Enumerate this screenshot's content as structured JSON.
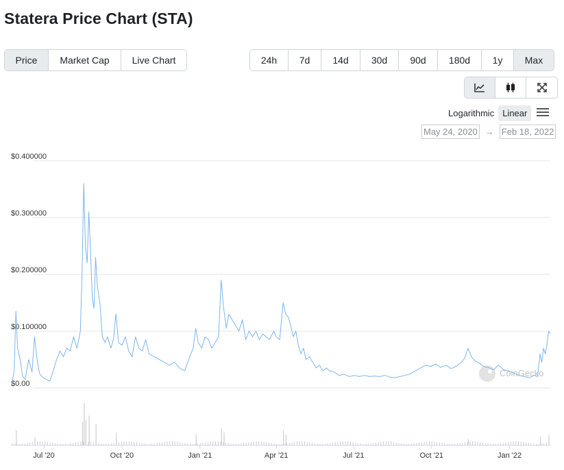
{
  "page": {
    "title": "Statera Price Chart (STA)"
  },
  "metric_tabs": [
    {
      "label": "Price",
      "active": true
    },
    {
      "label": "Market Cap",
      "active": false
    },
    {
      "label": "Live Chart",
      "active": false
    }
  ],
  "range_tabs": [
    {
      "label": "24h",
      "active": false
    },
    {
      "label": "7d",
      "active": false
    },
    {
      "label": "14d",
      "active": false
    },
    {
      "label": "30d",
      "active": false
    },
    {
      "label": "90d",
      "active": false
    },
    {
      "label": "180d",
      "active": false
    },
    {
      "label": "1y",
      "active": false
    },
    {
      "label": "Max",
      "active": true
    }
  ],
  "view_buttons": [
    {
      "icon": "line-chart-icon",
      "active": true
    },
    {
      "icon": "candlestick-icon",
      "active": false
    },
    {
      "icon": "fullscreen-icon",
      "active": false
    }
  ],
  "scale": {
    "log_label": "Logarithmic",
    "linear_label": "Linear",
    "active": "linear"
  },
  "date_range": {
    "from": "May 24, 2020",
    "arrow": "→",
    "to": "Feb 18, 2022"
  },
  "watermark": "CoinGecko",
  "colors": {
    "line": "#7cb5ec",
    "volume": "#cccccc",
    "grid": "#e6e6e6",
    "active_tab": "#e9ecef"
  },
  "chart_data": {
    "type": "line",
    "x_range": [
      "2020-05-24",
      "2022-02-18"
    ],
    "y_ticks": [
      "$0.00",
      "$0.100000",
      "$0.200000",
      "$0.300000",
      "$0.400000"
    ],
    "ylim": [
      0,
      0.4
    ],
    "x_ticks": [
      {
        "date": "2020-07-01",
        "label": "Jul '20"
      },
      {
        "date": "2020-10-01",
        "label": "Oct '20"
      },
      {
        "date": "2021-01-01",
        "label": "Jan '21"
      },
      {
        "date": "2021-04-01",
        "label": "Apr '21"
      },
      {
        "date": "2021-07-01",
        "label": "Jul '21"
      },
      {
        "date": "2021-10-01",
        "label": "Oct '21"
      },
      {
        "date": "2022-01-01",
        "label": "Jan '22"
      }
    ],
    "grid": true,
    "series": [
      {
        "values": [
          [
            "2020-05-24",
            0.005
          ],
          [
            "2020-05-27",
            0.03
          ],
          [
            "2020-05-29",
            0.135
          ],
          [
            "2020-05-31",
            0.07
          ],
          [
            "2020-06-03",
            0.05
          ],
          [
            "2020-06-06",
            0.02
          ],
          [
            "2020-06-09",
            0.015
          ],
          [
            "2020-06-13",
            0.05
          ],
          [
            "2020-06-17",
            0.028
          ],
          [
            "2020-06-20",
            0.09
          ],
          [
            "2020-06-23",
            0.05
          ],
          [
            "2020-06-26",
            0.025
          ],
          [
            "2020-06-30",
            0.018
          ],
          [
            "2020-07-04",
            0.015
          ],
          [
            "2020-07-08",
            0.012
          ],
          [
            "2020-07-12",
            0.03
          ],
          [
            "2020-07-16",
            0.05
          ],
          [
            "2020-07-20",
            0.065
          ],
          [
            "2020-07-24",
            0.055
          ],
          [
            "2020-07-28",
            0.07
          ],
          [
            "2020-08-01",
            0.065
          ],
          [
            "2020-08-05",
            0.09
          ],
          [
            "2020-08-09",
            0.07
          ],
          [
            "2020-08-13",
            0.1
          ],
          [
            "2020-08-15",
            0.2
          ],
          [
            "2020-08-17",
            0.36
          ],
          [
            "2020-08-19",
            0.25
          ],
          [
            "2020-08-21",
            0.22
          ],
          [
            "2020-08-23",
            0.31
          ],
          [
            "2020-08-25",
            0.24
          ],
          [
            "2020-08-27",
            0.16
          ],
          [
            "2020-08-29",
            0.14
          ],
          [
            "2020-08-31",
            0.23
          ],
          [
            "2020-09-02",
            0.18
          ],
          [
            "2020-09-05",
            0.15
          ],
          [
            "2020-09-08",
            0.09
          ],
          [
            "2020-09-11",
            0.08
          ],
          [
            "2020-09-14",
            0.09
          ],
          [
            "2020-09-18",
            0.07
          ],
          [
            "2020-09-21",
            0.085
          ],
          [
            "2020-09-24",
            0.13
          ],
          [
            "2020-09-27",
            0.08
          ],
          [
            "2020-10-01",
            0.075
          ],
          [
            "2020-10-05",
            0.09
          ],
          [
            "2020-10-09",
            0.065
          ],
          [
            "2020-10-13",
            0.055
          ],
          [
            "2020-10-17",
            0.09
          ],
          [
            "2020-10-21",
            0.07
          ],
          [
            "2020-10-25",
            0.065
          ],
          [
            "2020-10-29",
            0.085
          ],
          [
            "2020-11-02",
            0.06
          ],
          [
            "2020-11-08",
            0.055
          ],
          [
            "2020-11-14",
            0.05
          ],
          [
            "2020-11-20",
            0.045
          ],
          [
            "2020-11-26",
            0.04
          ],
          [
            "2020-12-02",
            0.045
          ],
          [
            "2020-12-08",
            0.035
          ],
          [
            "2020-12-14",
            0.03
          ],
          [
            "2020-12-20",
            0.055
          ],
          [
            "2020-12-24",
            0.07
          ],
          [
            "2020-12-27",
            0.105
          ],
          [
            "2020-12-30",
            0.08
          ],
          [
            "2021-01-03",
            0.07
          ],
          [
            "2021-01-07",
            0.09
          ],
          [
            "2021-01-11",
            0.085
          ],
          [
            "2021-01-15",
            0.07
          ],
          [
            "2021-01-19",
            0.08
          ],
          [
            "2021-01-23",
            0.09
          ],
          [
            "2021-01-26",
            0.19
          ],
          [
            "2021-01-29",
            0.14
          ],
          [
            "2021-02-01",
            0.105
          ],
          [
            "2021-02-04",
            0.13
          ],
          [
            "2021-02-08",
            0.12
          ],
          [
            "2021-02-12",
            0.11
          ],
          [
            "2021-02-16",
            0.1
          ],
          [
            "2021-02-20",
            0.12
          ],
          [
            "2021-02-24",
            0.085
          ],
          [
            "2021-02-28",
            0.1
          ],
          [
            "2021-03-04",
            0.09
          ],
          [
            "2021-03-08",
            0.1
          ],
          [
            "2021-03-12",
            0.085
          ],
          [
            "2021-03-16",
            0.095
          ],
          [
            "2021-03-20",
            0.09
          ],
          [
            "2021-03-24",
            0.085
          ],
          [
            "2021-03-29",
            0.1
          ],
          [
            "2021-04-01",
            0.09
          ],
          [
            "2021-04-05",
            0.085
          ],
          [
            "2021-04-09",
            0.15
          ],
          [
            "2021-04-12",
            0.13
          ],
          [
            "2021-04-15",
            0.125
          ],
          [
            "2021-04-18",
            0.11
          ],
          [
            "2021-04-21",
            0.09
          ],
          [
            "2021-04-24",
            0.1
          ],
          [
            "2021-04-27",
            0.075
          ],
          [
            "2021-04-30",
            0.06
          ],
          [
            "2021-05-03",
            0.07
          ],
          [
            "2021-05-06",
            0.05
          ],
          [
            "2021-05-10",
            0.055
          ],
          [
            "2021-05-14",
            0.045
          ],
          [
            "2021-05-18",
            0.035
          ],
          [
            "2021-05-22",
            0.04
          ],
          [
            "2021-05-26",
            0.03
          ],
          [
            "2021-05-30",
            0.035
          ],
          [
            "2021-06-03",
            0.03
          ],
          [
            "2021-06-08",
            0.028
          ],
          [
            "2021-06-14",
            0.022
          ],
          [
            "2021-06-20",
            0.024
          ],
          [
            "2021-06-26",
            0.02
          ],
          [
            "2021-07-02",
            0.022
          ],
          [
            "2021-07-08",
            0.02
          ],
          [
            "2021-07-14",
            0.022
          ],
          [
            "2021-07-20",
            0.02
          ],
          [
            "2021-07-26",
            0.021
          ],
          [
            "2021-08-01",
            0.02
          ],
          [
            "2021-08-07",
            0.022
          ],
          [
            "2021-08-13",
            0.019
          ],
          [
            "2021-08-19",
            0.018
          ],
          [
            "2021-08-25",
            0.02
          ],
          [
            "2021-08-31",
            0.022
          ],
          [
            "2021-09-06",
            0.025
          ],
          [
            "2021-09-12",
            0.03
          ],
          [
            "2021-09-18",
            0.035
          ],
          [
            "2021-09-24",
            0.04
          ],
          [
            "2021-09-30",
            0.038
          ],
          [
            "2021-10-06",
            0.042
          ],
          [
            "2021-10-12",
            0.036
          ],
          [
            "2021-10-18",
            0.04
          ],
          [
            "2021-10-24",
            0.034
          ],
          [
            "2021-10-30",
            0.038
          ],
          [
            "2021-11-05",
            0.045
          ],
          [
            "2021-11-09",
            0.052
          ],
          [
            "2021-11-13",
            0.07
          ],
          [
            "2021-11-17",
            0.055
          ],
          [
            "2021-11-21",
            0.048
          ],
          [
            "2021-11-26",
            0.044
          ],
          [
            "2021-12-01",
            0.038
          ],
          [
            "2021-12-07",
            0.036
          ],
          [
            "2021-12-13",
            0.032
          ],
          [
            "2021-12-19",
            0.04
          ],
          [
            "2021-12-25",
            0.032
          ],
          [
            "2021-12-31",
            0.03
          ],
          [
            "2022-01-06",
            0.026
          ],
          [
            "2022-01-12",
            0.022
          ],
          [
            "2022-01-18",
            0.02
          ],
          [
            "2022-01-24",
            0.018
          ],
          [
            "2022-01-30",
            0.022
          ],
          [
            "2022-02-03",
            0.02
          ],
          [
            "2022-02-06",
            0.06
          ],
          [
            "2022-02-08",
            0.045
          ],
          [
            "2022-02-10",
            0.07
          ],
          [
            "2022-02-12",
            0.06
          ],
          [
            "2022-02-14",
            0.075
          ],
          [
            "2022-02-16",
            0.1
          ],
          [
            "2022-02-18",
            0.095
          ]
        ]
      }
    ],
    "volume": {
      "spikes": [
        [
          "2020-05-29",
          0.35
        ],
        [
          "2020-06-20",
          0.2
        ],
        [
          "2020-08-15",
          0.55
        ],
        [
          "2020-08-17",
          1.0
        ],
        [
          "2020-08-19",
          0.6
        ],
        [
          "2020-08-23",
          0.7
        ],
        [
          "2020-08-31",
          0.5
        ],
        [
          "2020-09-24",
          0.3
        ],
        [
          "2020-12-27",
          0.25
        ],
        [
          "2021-01-26",
          0.4
        ],
        [
          "2021-01-29",
          0.3
        ],
        [
          "2021-04-09",
          0.35
        ],
        [
          "2021-04-12",
          0.25
        ],
        [
          "2021-11-13",
          0.15
        ],
        [
          "2022-02-06",
          0.2
        ],
        [
          "2022-02-16",
          0.25
        ]
      ]
    }
  }
}
